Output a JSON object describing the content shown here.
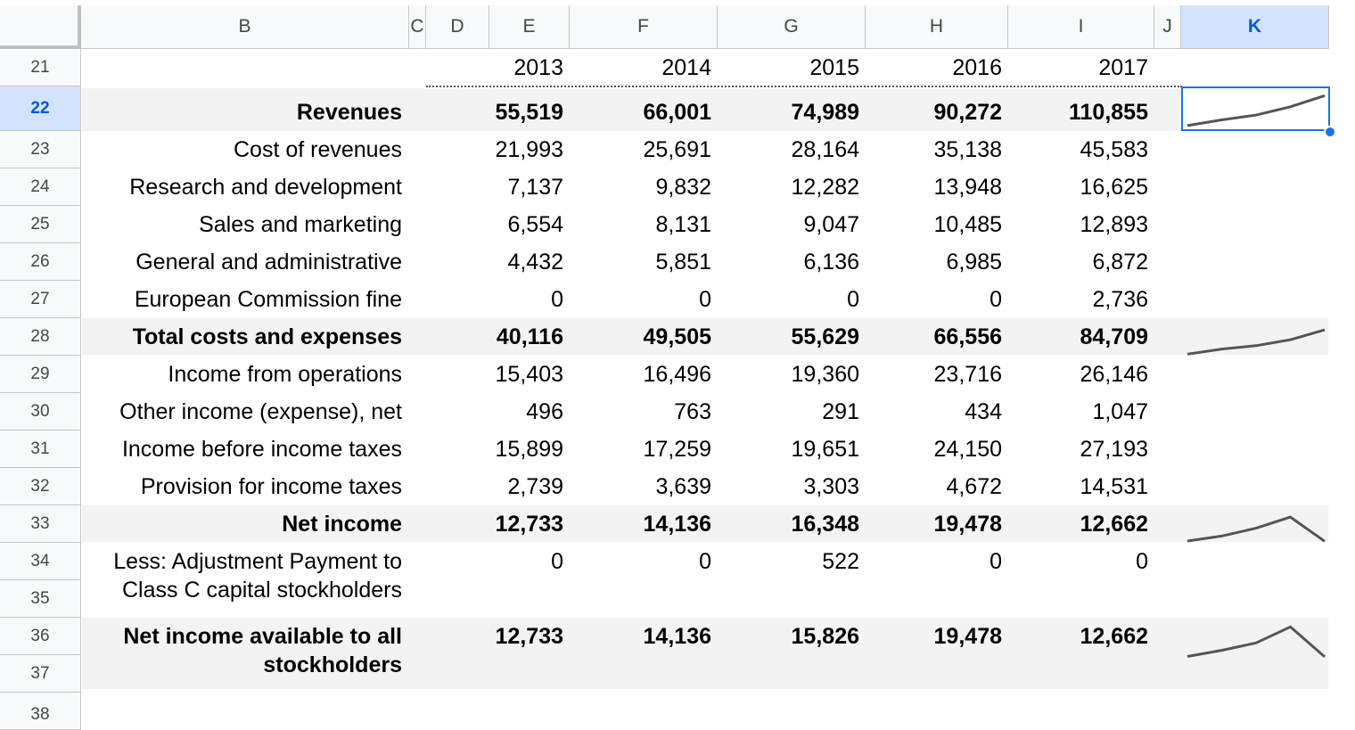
{
  "columns": [
    "B",
    "C",
    "D",
    "E",
    "F",
    "G",
    "H",
    "I",
    "J",
    "K"
  ],
  "selected_column": "K",
  "rows": [
    "21",
    "22",
    "23",
    "24",
    "25",
    "26",
    "27",
    "28",
    "29",
    "30",
    "31",
    "32",
    "33",
    "34",
    "35",
    "36",
    "37",
    "38"
  ],
  "selected_row": "22",
  "years": [
    "2013",
    "2014",
    "2015",
    "2016",
    "2017"
  ],
  "table": [
    {
      "label": "Revenues",
      "bold": true,
      "values": [
        "55,519",
        "66,001",
        "74,989",
        "90,272",
        "110,855"
      ]
    },
    {
      "label": "Cost of revenues",
      "bold": false,
      "values": [
        "21,993",
        "25,691",
        "28,164",
        "35,138",
        "45,583"
      ]
    },
    {
      "label": "Research and development",
      "bold": false,
      "values": [
        "7,137",
        "9,832",
        "12,282",
        "13,948",
        "16,625"
      ]
    },
    {
      "label": "Sales and marketing",
      "bold": false,
      "values": [
        "6,554",
        "8,131",
        "9,047",
        "10,485",
        "12,893"
      ]
    },
    {
      "label": "General and administrative",
      "bold": false,
      "values": [
        "4,432",
        "5,851",
        "6,136",
        "6,985",
        "6,872"
      ]
    },
    {
      "label": "European Commission fine",
      "bold": false,
      "values": [
        "0",
        "0",
        "0",
        "0",
        "2,736"
      ]
    },
    {
      "label": "Total costs and expenses",
      "bold": true,
      "values": [
        "40,116",
        "49,505",
        "55,629",
        "66,556",
        "84,709"
      ]
    },
    {
      "label": "Income from operations",
      "bold": false,
      "values": [
        "15,403",
        "16,496",
        "19,360",
        "23,716",
        "26,146"
      ]
    },
    {
      "label": "Other income (expense), net",
      "bold": false,
      "values": [
        "496",
        "763",
        "291",
        "434",
        "1,047"
      ]
    },
    {
      "label": "Income before income taxes",
      "bold": false,
      "values": [
        "15,899",
        "17,259",
        "19,651",
        "24,150",
        "27,193"
      ]
    },
    {
      "label": "Provision for income taxes",
      "bold": false,
      "values": [
        "2,739",
        "3,639",
        "3,303",
        "4,672",
        "14,531"
      ]
    },
    {
      "label": "Net income",
      "bold": true,
      "values": [
        "12,733",
        "14,136",
        "16,348",
        "19,478",
        "12,662"
      ]
    },
    {
      "label_lines": [
        "Less: Adjustment Payment to",
        "Class C capital stockholders"
      ],
      "bold": false,
      "values": [
        "0",
        "0",
        "522",
        "0",
        "0"
      ]
    },
    {
      "label_lines": [
        "Net income available to all",
        "stockholders"
      ],
      "bold": true,
      "values": [
        "12,733",
        "14,136",
        "15,826",
        "19,478",
        "12,662"
      ]
    }
  ],
  "sparklines": [
    {
      "row": "Revenues",
      "values": [
        55519,
        66001,
        74989,
        90272,
        110855
      ]
    },
    {
      "row": "Total costs and expenses",
      "values": [
        40116,
        49505,
        55629,
        66556,
        84709
      ]
    },
    {
      "row": "Net income",
      "values": [
        12733,
        14136,
        16348,
        19478,
        12662
      ]
    },
    {
      "row": "Net income available to all stockholders",
      "values": [
        12733,
        14136,
        15826,
        19478,
        12662
      ]
    }
  ],
  "colors": {
    "selection": "#1a73e8",
    "selected_header_bg": "#d3e3fd",
    "band": "#f3f3f3",
    "sparkline": "#555555"
  }
}
